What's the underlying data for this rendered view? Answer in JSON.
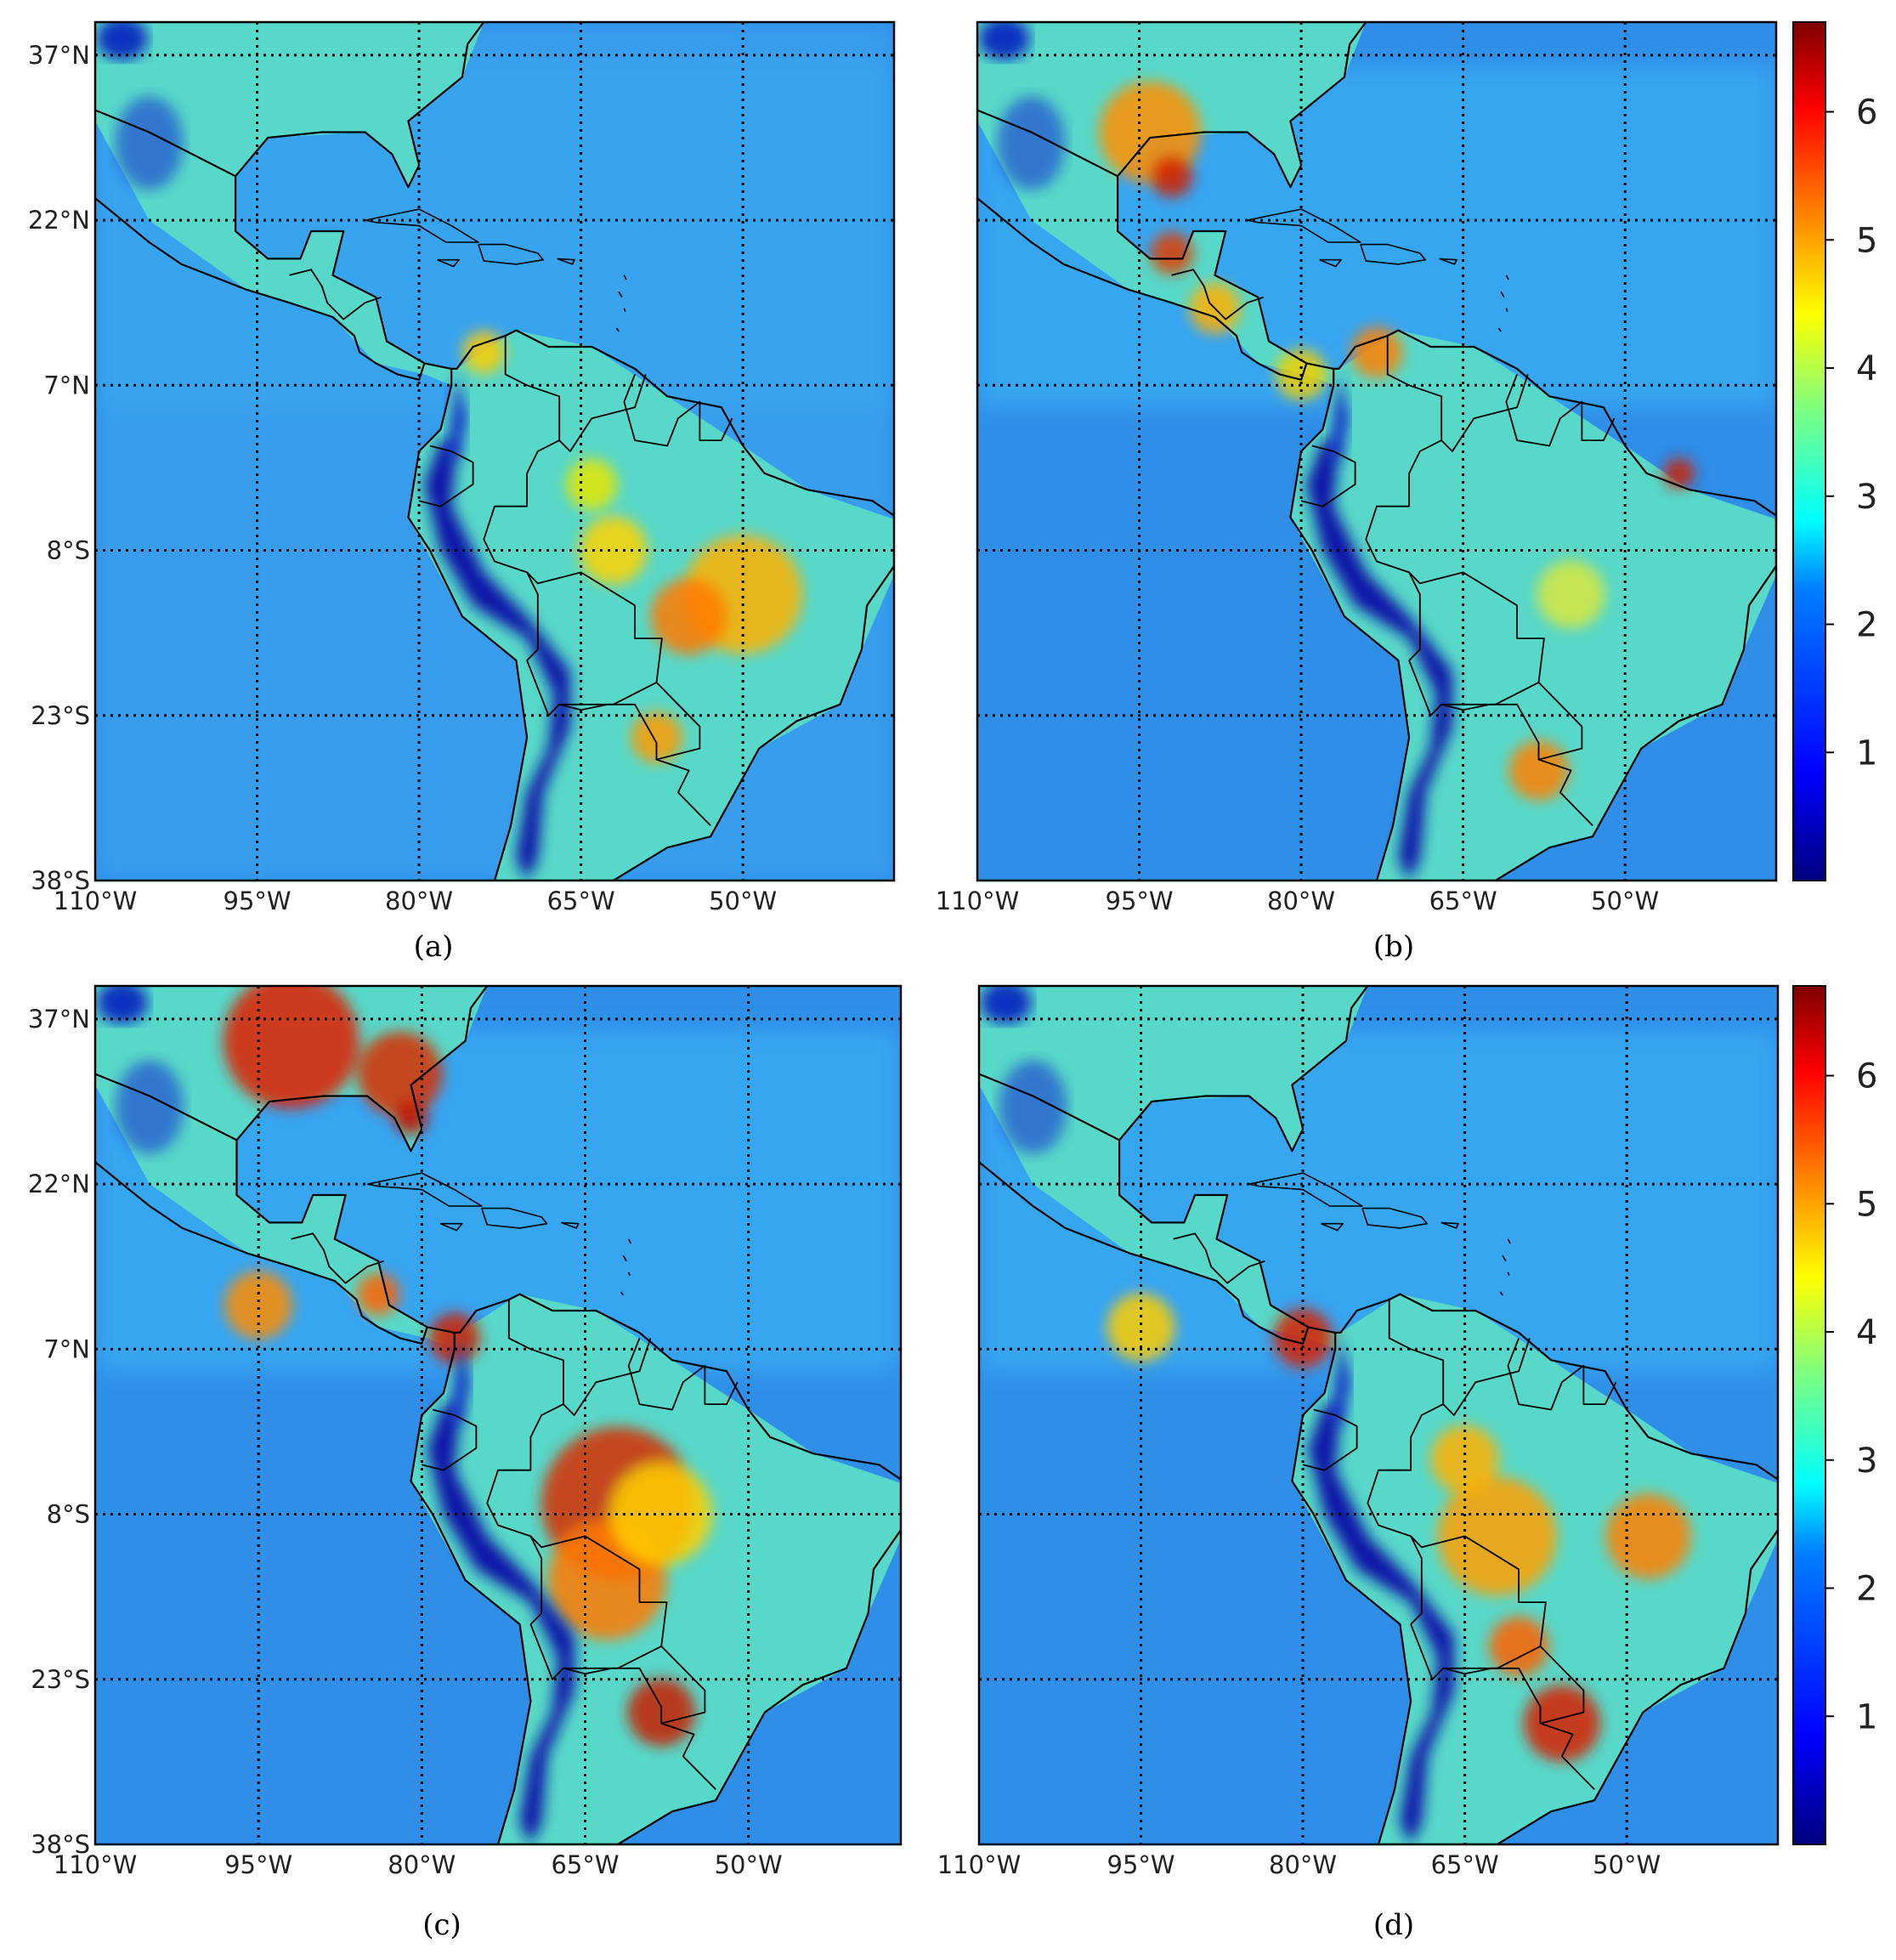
{
  "figure": {
    "panels": [
      {
        "id": "a",
        "label": "(a)"
      },
      {
        "id": "b",
        "label": "(b)"
      },
      {
        "id": "c",
        "label": "(c)"
      },
      {
        "id": "d",
        "label": "(d)"
      }
    ],
    "lat_ticks": [
      "37°N",
      "22°N",
      "7°N",
      "8°S",
      "23°S",
      "38°S"
    ],
    "lon_ticks": [
      "110°W",
      "95°W",
      "80°W",
      "65°W",
      "50°W"
    ],
    "colorbar": {
      "ticks": [
        "1",
        "2",
        "3",
        "4",
        "5",
        "6"
      ],
      "range": [
        0,
        6.7
      ],
      "colormap": "jet",
      "colors": [
        "#00007f",
        "#0000ff",
        "#007fff",
        "#00ffff",
        "#7fff7f",
        "#ffff00",
        "#ff7f00",
        "#ff0000",
        "#7f0000"
      ]
    },
    "map_extent": {
      "lon": [
        -110,
        -36
      ],
      "lat": [
        -38,
        40
      ]
    },
    "gridlines": {
      "style": "dotted",
      "lons": [
        -95,
        -80,
        -65,
        -50
      ],
      "lats": [
        37,
        22,
        7,
        -8,
        -23
      ]
    }
  }
}
